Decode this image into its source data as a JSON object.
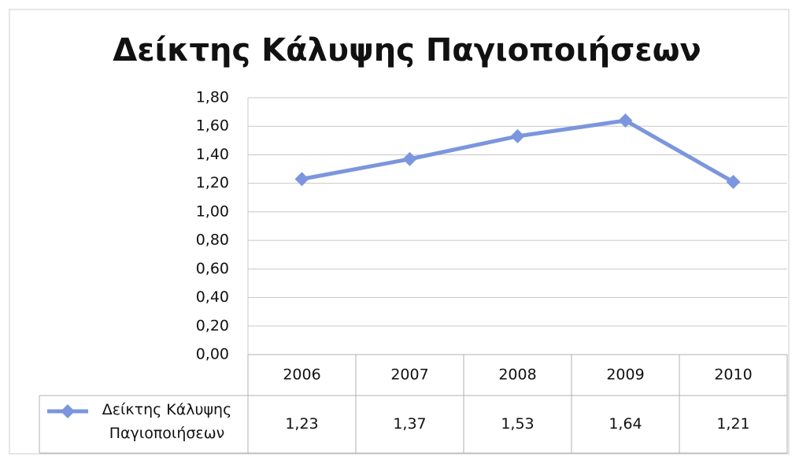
{
  "chart_data": {
    "type": "line",
    "title": "Δείκτης Κάλυψης Παγιοποιήσεων",
    "categories": [
      "2006",
      "2007",
      "2008",
      "2009",
      "2010"
    ],
    "series": [
      {
        "name": "Δείκτης Κάλυψης Παγιοποιήσεων",
        "color": "#7b96dd",
        "values": [
          1.23,
          1.37,
          1.53,
          1.64,
          1.21
        ],
        "value_labels": [
          "1,23",
          "1,37",
          "1,53",
          "1,64",
          "1,21"
        ]
      }
    ],
    "ylim": [
      0,
      1.8
    ],
    "yticks": [
      {
        "value": 0,
        "label": "0,00"
      },
      {
        "value": 0.2,
        "label": "0,20"
      },
      {
        "value": 0.4,
        "label": "0,40"
      },
      {
        "value": 0.6,
        "label": "0,60"
      },
      {
        "value": 0.8,
        "label": "0,80"
      },
      {
        "value": 1.0,
        "label": "1,00"
      },
      {
        "value": 1.2,
        "label": "1,20"
      },
      {
        "value": 1.4,
        "label": "1,40"
      },
      {
        "value": 1.6,
        "label": "1,60"
      },
      {
        "value": 1.8,
        "label": "1,80"
      }
    ],
    "grid": true,
    "data_table": true
  }
}
